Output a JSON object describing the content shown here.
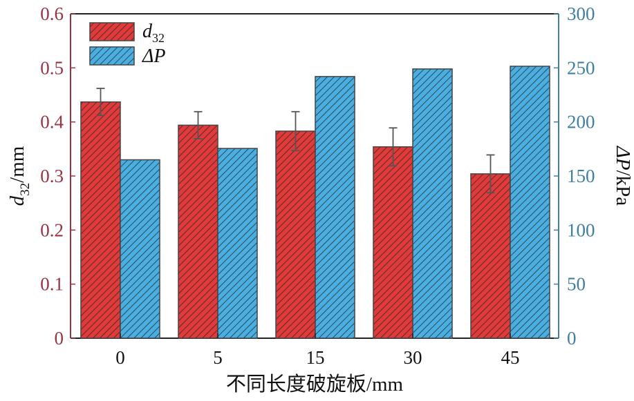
{
  "chart_data": {
    "type": "bar",
    "categories": [
      "0",
      "5",
      "15",
      "30",
      "45"
    ],
    "xlabel": "不同长度破旋板/mm",
    "ylabel_left": {
      "base": "d",
      "sub": "32",
      "unit": "/mm"
    },
    "ylabel_right": {
      "base": "ΔP",
      "unit": "/kPa"
    },
    "ylim_left": [
      0,
      0.6
    ],
    "ylim_right": [
      0,
      300
    ],
    "yticks_left": [
      "0",
      "0.1",
      "0.2",
      "0.3",
      "0.4",
      "0.5",
      "0.6"
    ],
    "yticks_right": [
      "0",
      "50",
      "100",
      "150",
      "200",
      "250",
      "300"
    ],
    "grid": false,
    "legend_position": "top-left",
    "series": [
      {
        "name": "d32",
        "legend": {
          "base": "d",
          "sub": "32"
        },
        "axis": "left",
        "color": "#e03a3a",
        "values": [
          0.437,
          0.394,
          0.383,
          0.354,
          0.304
        ],
        "errors": [
          0.025,
          0.025,
          0.036,
          0.035,
          0.035
        ]
      },
      {
        "name": "ΔP",
        "legend": {
          "base": "ΔP"
        },
        "axis": "right",
        "color": "#4aaee0",
        "values": [
          165,
          175.5,
          242,
          249,
          251.5
        ]
      }
    ]
  }
}
